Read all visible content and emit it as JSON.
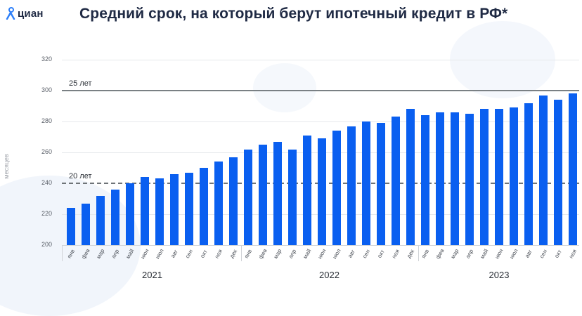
{
  "header": {
    "logo_text": "циан",
    "title": "Средний срок, на который берут ипотечный кредит в РФ*"
  },
  "colors": {
    "bar": "#0a5ff0",
    "title": "#1f2a44",
    "reference_line": "#7a8084"
  },
  "chart_data": {
    "type": "bar",
    "title": "Средний срок, на который берут ипотечный кредит в РФ*",
    "xlabel": "",
    "ylabel": "месяцев",
    "ylim": [
      200,
      320
    ],
    "yticks": [
      200,
      220,
      240,
      260,
      280,
      300,
      320
    ],
    "grid": true,
    "legend": null,
    "reference_lines": [
      {
        "value": 300,
        "label": "25 лет",
        "style": "solid"
      },
      {
        "value": 240,
        "label": "20 лет",
        "style": "dashed"
      }
    ],
    "year_groups": [
      {
        "year": "2021",
        "months": [
          "янв",
          "фев",
          "мар",
          "апр",
          "май",
          "июн",
          "июл",
          "авг",
          "сен",
          "окт",
          "ноя",
          "дек"
        ]
      },
      {
        "year": "2022",
        "months": [
          "янв",
          "фев",
          "мар",
          "апр",
          "май",
          "июн",
          "июл",
          "авг",
          "сен",
          "окт",
          "ноя",
          "дек"
        ]
      },
      {
        "year": "2023",
        "months": [
          "янв",
          "фев",
          "мар",
          "апр",
          "май",
          "июн",
          "июл",
          "авг",
          "сен",
          "окт",
          "ноя"
        ]
      }
    ],
    "categories": [
      "янв 2021",
      "фев 2021",
      "мар 2021",
      "апр 2021",
      "май 2021",
      "июн 2021",
      "июл 2021",
      "авг 2021",
      "сен 2021",
      "окт 2021",
      "ноя 2021",
      "дек 2021",
      "янв 2022",
      "фев 2022",
      "мар 2022",
      "апр 2022",
      "май 2022",
      "июн 2022",
      "июл 2022",
      "авг 2022",
      "сен 2022",
      "окт 2022",
      "ноя 2022",
      "дек 2022",
      "янв 2023",
      "фев 2023",
      "мар 2023",
      "апр 2023",
      "май 2023",
      "июн 2023",
      "июл 2023",
      "авг 2023",
      "сен 2023",
      "окт 2023",
      "ноя 2023"
    ],
    "values": [
      224,
      227,
      232,
      236,
      240,
      244,
      243,
      246,
      247,
      250,
      254,
      257,
      262,
      265,
      267,
      262,
      271,
      269,
      274,
      277,
      280,
      279,
      283,
      288,
      284,
      286,
      286,
      285,
      288,
      288,
      289,
      292,
      297,
      294,
      298
    ]
  }
}
